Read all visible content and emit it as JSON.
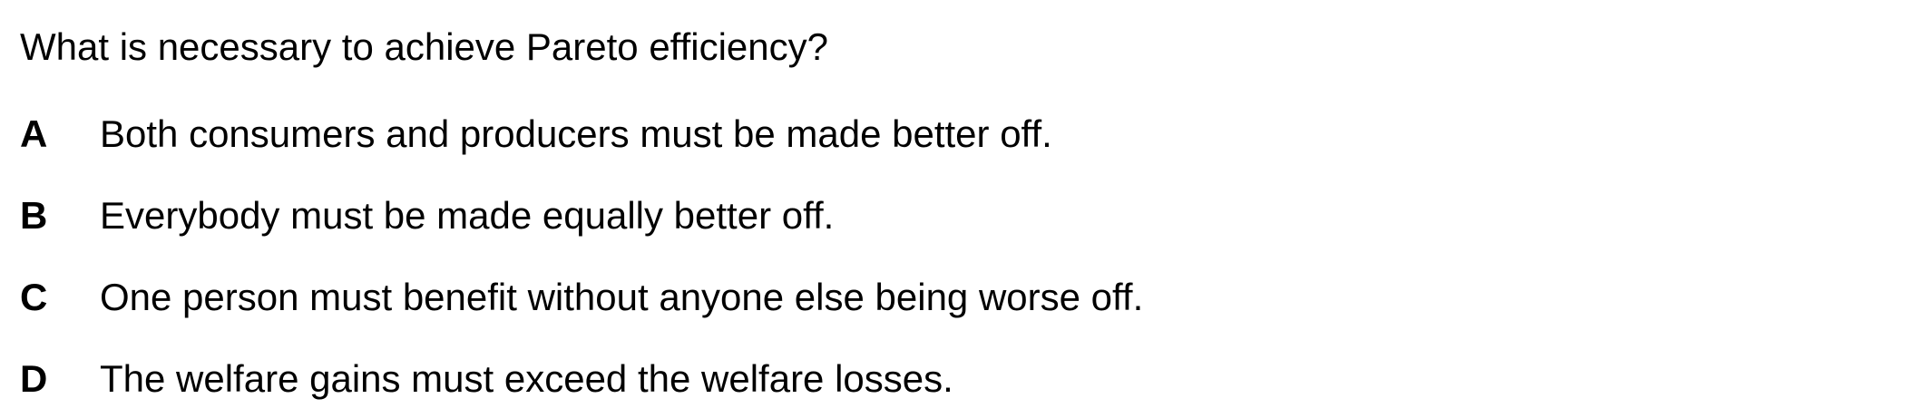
{
  "question": "What is necessary to achieve Pareto efficiency?",
  "options": [
    {
      "letter": "A",
      "text": "Both consumers and producers must be made better off."
    },
    {
      "letter": "B",
      "text": "Everybody must be made equally better off."
    },
    {
      "letter": "C",
      "text": "One person must benefit without anyone else being worse off."
    },
    {
      "letter": "D",
      "text": "The welfare gains must exceed the welfare losses."
    }
  ]
}
